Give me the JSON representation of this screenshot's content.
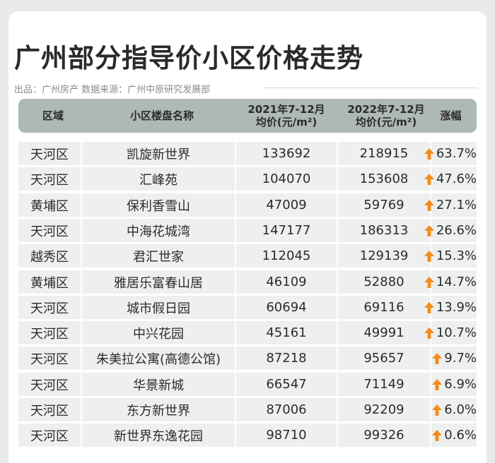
{
  "title": "广州部分指导价小区价格走势",
  "source": "出品：广州房产   数据来源：广州中原研究发展部",
  "colors": {
    "arrow": "#f28c1e",
    "header_bg": "#aeb8b4",
    "row_bg": "#eef0ef"
  },
  "chart_data": {
    "type": "table",
    "columns": [
      "区域",
      "小区楼盘名称",
      "2021年7-12月 均价(元/m²)",
      "2022年7-12月 均价(元/m²)",
      "涨幅"
    ],
    "header": {
      "district": "区域",
      "name": "小区楼盘名称",
      "p2021_line1": "2021年7-12月",
      "p2021_line2": "均价(元/m²)",
      "p2022_line1": "2022年7-12月",
      "p2022_line2": "均价(元/m²)",
      "change": "涨幅"
    },
    "rows": [
      {
        "district": "天河区",
        "name": "凯旋新世界",
        "p2021": "133692",
        "p2022": "218915",
        "change": "63.7%"
      },
      {
        "district": "天河区",
        "name": "汇峰苑",
        "p2021": "104070",
        "p2022": "153608",
        "change": "47.6%"
      },
      {
        "district": "黄埔区",
        "name": "保利香雪山",
        "p2021": "47009",
        "p2022": "59769",
        "change": "27.1%"
      },
      {
        "district": "天河区",
        "name": "中海花城湾",
        "p2021": "147177",
        "p2022": "186313",
        "change": "26.6%"
      },
      {
        "district": "越秀区",
        "name": "君汇世家",
        "p2021": "112045",
        "p2022": "129139",
        "change": "15.3%"
      },
      {
        "district": "黄埔区",
        "name": "雅居乐富春山居",
        "p2021": "46109",
        "p2022": "52880",
        "change": "14.7%"
      },
      {
        "district": "天河区",
        "name": "城市假日园",
        "p2021": "60694",
        "p2022": "69116",
        "change": "13.9%"
      },
      {
        "district": "天河区",
        "name": "中兴花园",
        "p2021": "45161",
        "p2022": "49991",
        "change": "10.7%"
      },
      {
        "district": "天河区",
        "name": "朱美拉公寓(高德公馆)",
        "p2021": "87218",
        "p2022": "95657",
        "change": "9.7%"
      },
      {
        "district": "天河区",
        "name": "华景新城",
        "p2021": "66547",
        "p2022": "71149",
        "change": "6.9%"
      },
      {
        "district": "天河区",
        "name": "东方新世界",
        "p2021": "87006",
        "p2022": "92209",
        "change": "6.0%"
      },
      {
        "district": "天河区",
        "name": "新世界东逸花园",
        "p2021": "98710",
        "p2022": "99326",
        "change": "0.6%"
      }
    ]
  }
}
